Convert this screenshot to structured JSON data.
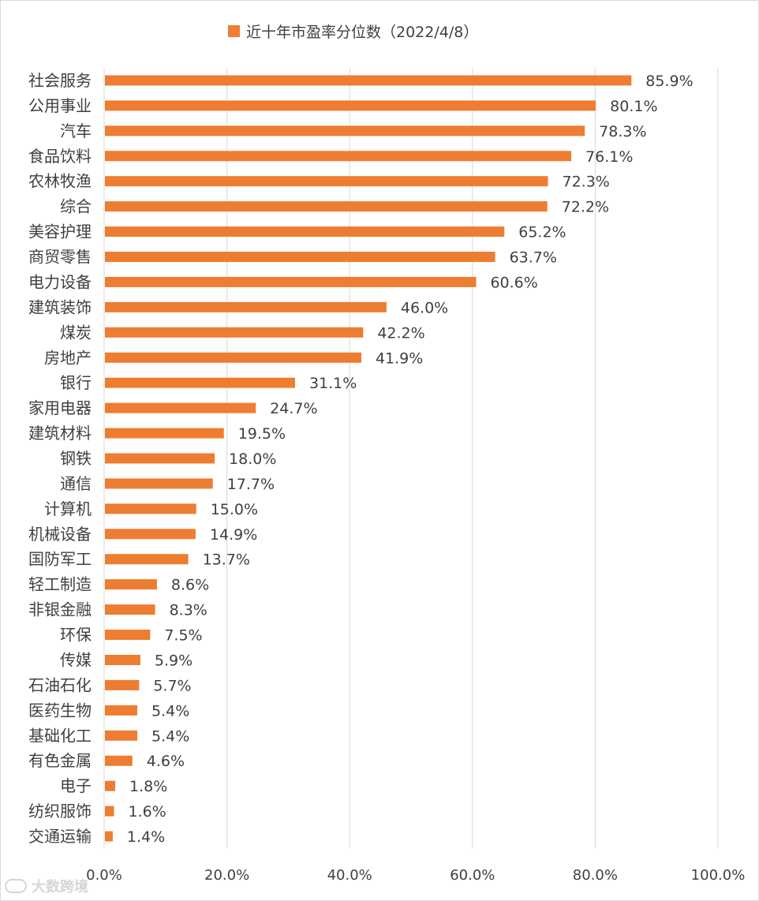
{
  "chart_data": {
    "type": "bar",
    "orientation": "horizontal",
    "categories": [
      "社会服务",
      "公用事业",
      "汽车",
      "食品饮料",
      "农林牧渔",
      "综合",
      "美容护理",
      "商贸零售",
      "电力设备",
      "建筑装饰",
      "煤炭",
      "房地产",
      "银行",
      "家用电器",
      "建筑材料",
      "钢铁",
      "通信",
      "计算机",
      "机械设备",
      "国防军工",
      "轻工制造",
      "非银金融",
      "环保",
      "传媒",
      "石油石化",
      "医药生物",
      "基础化工",
      "有色金属",
      "电子",
      "纺织服饰",
      "交通运输"
    ],
    "series": [
      {
        "name": "近十年市盈率分位数（2022/4/8）",
        "values": [
          85.9,
          80.1,
          78.3,
          76.1,
          72.3,
          72.2,
          65.2,
          63.7,
          60.6,
          46.0,
          42.2,
          41.9,
          31.1,
          24.7,
          19.5,
          18.0,
          17.7,
          15.0,
          14.9,
          13.7,
          8.6,
          8.3,
          7.5,
          5.9,
          5.7,
          5.4,
          5.4,
          4.6,
          1.8,
          1.6,
          1.4
        ],
        "data_labels": [
          "85.9%",
          "80.1%",
          "78.3%",
          "76.1%",
          "72.3%",
          "72.2%",
          "65.2%",
          "63.7%",
          "60.6%",
          "46.0%",
          "42.2%",
          "41.9%",
          "31.1%",
          "24.7%",
          "19.5%",
          "18.0%",
          "17.7%",
          "15.0%",
          "14.9%",
          "13.7%",
          "8.6%",
          "8.3%",
          "7.5%",
          "5.9%",
          "5.7%",
          "5.4%",
          "5.4%",
          "4.6%",
          "1.8%",
          "1.6%",
          "1.4%"
        ]
      }
    ],
    "xlim": [
      0,
      100
    ],
    "x_ticks": [
      "0.0%",
      "20.0%",
      "40.0%",
      "60.0%",
      "80.0%",
      "100.0%"
    ],
    "grid": "vertical",
    "legend_position": "top",
    "bar_color": "#ED7D31",
    "grid_color": "#D9D9D9",
    "text_color": "#404040"
  },
  "watermark": {
    "text": "大数跨境",
    "icon": "watermark-logo-icon"
  }
}
